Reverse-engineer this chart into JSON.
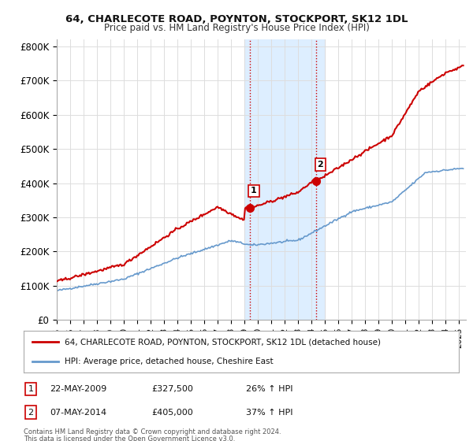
{
  "title1": "64, CHARLECOTE ROAD, POYNTON, STOCKPORT, SK12 1DL",
  "title2": "Price paid vs. HM Land Registry's House Price Index (HPI)",
  "xlim_start": 1995.0,
  "xlim_end": 2025.5,
  "ylim": [
    0,
    820000
  ],
  "yticks": [
    0,
    100000,
    200000,
    300000,
    400000,
    500000,
    600000,
    700000,
    800000
  ],
  "ytick_labels": [
    "£0",
    "£100K",
    "£200K",
    "£300K",
    "£400K",
    "£500K",
    "£600K",
    "£700K",
    "£800K"
  ],
  "sale1_x": 2009.385,
  "sale1_y": 327500,
  "sale1_label": "1",
  "sale1_date": "22-MAY-2009",
  "sale1_price": "£327,500",
  "sale1_hpi": "26% ↑ HPI",
  "sale2_x": 2014.35,
  "sale2_y": 405000,
  "sale2_label": "2",
  "sale2_date": "07-MAY-2014",
  "sale2_price": "£405,000",
  "sale2_hpi": "37% ↑ HPI",
  "highlight_xmin": 2009.0,
  "highlight_xmax": 2015.0,
  "highlight_color": "#ddeeff",
  "line1_color": "#cc0000",
  "line2_color": "#6699cc",
  "legend_line1": "64, CHARLECOTE ROAD, POYNTON, STOCKPORT, SK12 1DL (detached house)",
  "legend_line2": "HPI: Average price, detached house, Cheshire East",
  "footnote1": "Contains HM Land Registry data © Crown copyright and database right 2024.",
  "footnote2": "This data is licensed under the Open Government Licence v3.0.",
  "background_color": "#ffffff",
  "grid_color": "#dddddd"
}
